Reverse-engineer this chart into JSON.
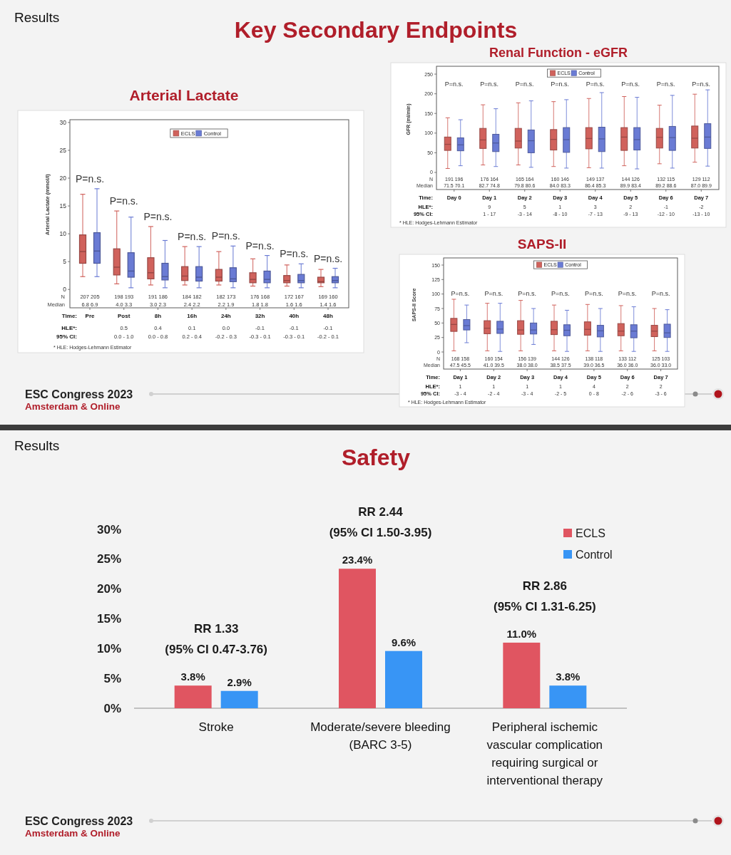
{
  "chart_data": [
    {
      "type": "other",
      "title": "Key Secondary Endpoints",
      "annotations": [
        "Results",
        "ESC Congress 2023",
        "Amsterdam & Online"
      ]
    },
    {
      "type": "box",
      "title": "Arterial Lactate",
      "xlabel": "Time:",
      "ylabel": "Arterial Lactate (mmol/l)",
      "categories": [
        "Pre",
        "Post",
        "8h",
        "16h",
        "24h",
        "32h",
        "40h",
        "48h"
      ],
      "ylim": [
        -3.3,
        30.5
      ],
      "yticks": [
        0,
        5,
        10,
        15,
        20,
        25,
        30
      ],
      "legend": "top",
      "series": [
        {
          "name": "ECLS",
          "color": "#d0625c",
          "boxes": [
            {
              "low": 2.3,
              "q1": 4.7,
              "median": 6.8,
              "q3": 9.8,
              "high": 17.1
            },
            {
              "low": 1.0,
              "q1": 2.6,
              "median": 4.0,
              "q3": 7.3,
              "high": 14.1
            },
            {
              "low": 0.8,
              "q1": 1.9,
              "median": 3.0,
              "q3": 5.7,
              "high": 11.3
            },
            {
              "low": 0.8,
              "q1": 1.6,
              "median": 2.4,
              "q3": 4.1,
              "high": 7.7
            },
            {
              "low": 0.8,
              "q1": 1.5,
              "median": 2.2,
              "q3": 3.6,
              "high": 6.8
            },
            {
              "low": 0.6,
              "q1": 1.2,
              "median": 1.8,
              "q3": 3.0,
              "high": 5.5
            },
            {
              "low": 0.6,
              "q1": 1.2,
              "median": 1.6,
              "q3": 2.5,
              "high": 4.4
            },
            {
              "low": 0.5,
              "q1": 1.2,
              "median": 1.4,
              "q3": 2.2,
              "high": 3.6
            }
          ]
        },
        {
          "name": "Control",
          "color": "#6a7bd4",
          "boxes": [
            {
              "low": 2.3,
              "q1": 4.7,
              "median": 6.9,
              "q3": 10.2,
              "high": 18.1
            },
            {
              "low": 0.3,
              "q1": 2.2,
              "median": 3.3,
              "q3": 6.6,
              "high": 13.0
            },
            {
              "low": 0.3,
              "q1": 1.7,
              "median": 2.3,
              "q3": 4.7,
              "high": 8.8
            },
            {
              "low": 0.3,
              "q1": 1.5,
              "median": 2.2,
              "q3": 4.1,
              "high": 7.7
            },
            {
              "low": 0.3,
              "q1": 1.4,
              "median": 1.9,
              "q3": 3.9,
              "high": 7.8
            },
            {
              "low": 0.3,
              "q1": 1.2,
              "median": 1.8,
              "q3": 3.3,
              "high": 6.1
            },
            {
              "low": 0.3,
              "q1": 1.2,
              "median": 1.6,
              "q3": 2.7,
              "high": 4.6
            },
            {
              "low": 0.3,
              "q1": 1.2,
              "median": 1.6,
              "q3": 2.3,
              "high": 3.8
            }
          ]
        }
      ],
      "annotations": [
        "N",
        "Median",
        "HLE*:",
        "95% CI:",
        "* HLE: Hodges-Lehmann Estimator",
        "P=n.s.",
        "P=n.s.",
        "P=n.s.",
        "P=n.s.",
        "P=n.s.",
        "P=n.s.",
        "P=n.s.",
        "P=n.s.",
        "207 205",
        "198 193",
        "191 186",
        "184 182",
        "182 173",
        "176 168",
        "172 167",
        "169 160",
        "6.8 6.9",
        "4.0 3.3",
        "3.0 2.3",
        "2.4 2.2",
        "2.2 1.9",
        "1.8 1.8",
        "1.6 1.6",
        "1.4 1.6",
        "0.5",
        "0.4",
        "0.1",
        "0.0",
        "-0.1",
        "-0.1",
        "-0.1",
        "0.0 - 1.0",
        "0.0 - 0.8",
        "0.2 - 0.4",
        "-0.2 - 0.3",
        "-0.3 - 0.1",
        "-0.3 - 0.1",
        "-0.2 - 0.1"
      ]
    },
    {
      "type": "box",
      "title": "Renal Function - eGFR",
      "xlabel": "Time:",
      "ylabel": "GFR (ml/min)",
      "categories": [
        "Day 0",
        "Day 1",
        "Day 2",
        "Day 3",
        "Day 4",
        "Day 5",
        "Day 6",
        "Day 7"
      ],
      "ylim": [
        -43.5,
        270
      ],
      "yticks": [
        0,
        50,
        100,
        150,
        200,
        250
      ],
      "legend": "top",
      "series": [
        {
          "name": "ECLS",
          "color": "#d0625c",
          "boxes": [
            {
              "low": 10,
              "q1": 56,
              "median": 71.5,
              "q3": 90,
              "high": 139
            },
            {
              "low": 19,
              "q1": 61,
              "median": 82.7,
              "q3": 112,
              "high": 172
            },
            {
              "low": 19,
              "q1": 62,
              "median": 79.8,
              "q3": 112,
              "high": 177
            },
            {
              "low": 15,
              "q1": 57,
              "median": 84.0,
              "q3": 109,
              "high": 180
            },
            {
              "low": 12,
              "q1": 60,
              "median": 86.4,
              "q3": 114,
              "high": 188
            },
            {
              "low": 17,
              "q1": 56,
              "median": 89.9,
              "q3": 114,
              "high": 193
            },
            {
              "low": 22,
              "q1": 62,
              "median": 89.2,
              "q3": 112,
              "high": 171
            },
            {
              "low": 26,
              "q1": 62,
              "median": 87.0,
              "q3": 118,
              "high": 199
            }
          ]
        },
        {
          "name": "Control",
          "color": "#6a7bd4",
          "boxes": [
            {
              "low": 17,
              "q1": 55,
              "median": 70.1,
              "q3": 88,
              "high": 134
            },
            {
              "low": 15,
              "q1": 53,
              "median": 74.8,
              "q3": 97,
              "high": 162
            },
            {
              "low": 13,
              "q1": 50,
              "median": 80.6,
              "q3": 108,
              "high": 182
            },
            {
              "low": 11,
              "q1": 51,
              "median": 83.3,
              "q3": 114,
              "high": 185
            },
            {
              "low": 11,
              "q1": 53,
              "median": 85.3,
              "q3": 115,
              "high": 203
            },
            {
              "low": 9,
              "q1": 57,
              "median": 83.4,
              "q3": 114,
              "high": 191
            },
            {
              "low": 11,
              "q1": 56,
              "median": 88.6,
              "q3": 117,
              "high": 196
            },
            {
              "low": 16,
              "q1": 61,
              "median": 89.9,
              "q3": 124,
              "high": 210
            }
          ]
        }
      ],
      "annotations": [
        "N",
        "Median",
        "HLE*:",
        "95% CI:",
        "* HLE: Hodges-Lehmann Estimator",
        "P=n.s.",
        "P=n.s.",
        "P=n.s.",
        "P=n.s.",
        "P=n.s.",
        "P=n.s.",
        "P=n.s.",
        "P=n.s.",
        "191 196",
        "176 164",
        "165 164",
        "160 146",
        "149 137",
        "144 126",
        "132 115",
        "129 112",
        "71.5 70.1",
        "82.7 74.8",
        "79.8 80.6",
        "84.0 83.3",
        "86.4 85.3",
        "89.9 83.4",
        "89.2 88.6",
        "87.0 89.9",
        "9",
        "5",
        "1",
        "3",
        "2",
        "-1",
        "-2",
        "1 - 17",
        "-3 - 14",
        "-8 - 10",
        "-7 - 13",
        "-9 - 13",
        "-12 - 10",
        "-13 - 10"
      ]
    },
    {
      "type": "box",
      "title": "SAPS-II",
      "xlabel": "Time:",
      "ylabel": "SAPS-II Score",
      "categories": [
        "Day 1",
        "Day 2",
        "Day 3",
        "Day 4",
        "Day 5",
        "Day 6",
        "Day 7"
      ],
      "ylim": [
        -29.5,
        162.3
      ],
      "yticks": [
        0,
        25,
        50,
        75,
        100,
        125,
        150
      ],
      "legend": "top",
      "series": [
        {
          "name": "ECLS",
          "color": "#d0625c",
          "boxes": [
            {
              "low": 2,
              "q1": 35.5,
              "median": 47.5,
              "q3": 58,
              "high": 91
            },
            {
              "low": 2,
              "q1": 31.5,
              "median": 41.0,
              "q3": 54,
              "high": 84
            },
            {
              "low": 2,
              "q1": 30.5,
              "median": 38.0,
              "q3": 54,
              "high": 89
            },
            {
              "low": 2,
              "q1": 30,
              "median": 38.5,
              "q3": 53,
              "high": 81
            },
            {
              "low": 2,
              "q1": 29,
              "median": 39.0,
              "q3": 52,
              "high": 82
            },
            {
              "low": 2,
              "q1": 28,
              "median": 36.0,
              "q3": 49,
              "high": 80
            },
            {
              "low": 2,
              "q1": 26.5,
              "median": 36.0,
              "q3": 46,
              "high": 75
            }
          ]
        },
        {
          "name": "Control",
          "color": "#6a7bd4",
          "boxes": [
            {
              "low": 16,
              "q1": 38,
              "median": 45.5,
              "q3": 56,
              "high": 81
            },
            {
              "low": 1,
              "q1": 32,
              "median": 39.5,
              "q3": 53,
              "high": 84
            },
            {
              "low": 13,
              "q1": 31,
              "median": 38.0,
              "q3": 50,
              "high": 75
            },
            {
              "low": 1,
              "q1": 28,
              "median": 37.5,
              "q3": 47,
              "high": 72
            },
            {
              "low": 1,
              "q1": 26,
              "median": 36.5,
              "q3": 46,
              "high": 75
            },
            {
              "low": 1,
              "q1": 24.5,
              "median": 36.0,
              "q3": 47,
              "high": 78
            },
            {
              "low": 1,
              "q1": 25,
              "median": 33.0,
              "q3": 48,
              "high": 73
            }
          ]
        }
      ],
      "annotations": [
        "N",
        "Median",
        "HLE*:",
        "95% CI:",
        "* HLE: Hodges-Lehmann Estimator",
        "P=n.s.",
        "P=n.s.",
        "P=n.s.",
        "P=n.s.",
        "P=n.s.",
        "P=n.s.",
        "P=n.s.",
        "168 158",
        "160 154",
        "156 139",
        "144 126",
        "138 118",
        "133 112",
        "125 103",
        "47.5 45.5",
        "41.0 39.5",
        "38.0 38.0",
        "38.5 37.5",
        "39.0 36.5",
        "36.0 36.0",
        "36.0 33.0",
        "1",
        "1",
        "1",
        "1",
        "4",
        "2",
        "2",
        "-3 - 4",
        "-2 - 4",
        "-3 - 4",
        "-2 - 5",
        "0 - 8",
        "-2 - 6",
        "-3 - 6"
      ]
    },
    {
      "type": "bar",
      "title": "Safety",
      "categories": [
        "Stroke",
        "Moderate/severe bleeding (BARC 3-5)",
        "Peripheral ischemic vascular complication requiring surgical or interventional therapy"
      ],
      "ylim": [
        0,
        30
      ],
      "yticks": [
        {
          "value": 0,
          "label": "0%"
        },
        {
          "value": 5,
          "label": "5%"
        },
        {
          "value": 10,
          "label": "10%"
        },
        {
          "value": 15,
          "label": "15%"
        },
        {
          "value": 20,
          "label": "20%"
        },
        {
          "value": 25,
          "label": "25%"
        },
        {
          "value": 30,
          "label": "30%"
        }
      ],
      "legend": "top right",
      "series": [
        {
          "name": "ECLS",
          "color": "#e05561",
          "values": [
            3.8,
            23.4,
            11.0
          ],
          "value_labels": [
            "3.8%",
            "23.4%",
            "11.0%"
          ]
        },
        {
          "name": "Control",
          "color": "#3895f5",
          "values": [
            2.9,
            9.6,
            3.8
          ],
          "value_labels": [
            "2.9%",
            "9.6%",
            "3.8%"
          ]
        }
      ],
      "annotations": [
        "Results",
        "ESC Congress 2023",
        "Amsterdam & Online",
        "RR 1.33",
        "(95% CI 0.47-3.76)",
        "RR 2.44",
        "(95% CI 1.50-3.95)",
        "RR 2.86",
        "(95% CI 1.31-6.25)"
      ]
    }
  ]
}
